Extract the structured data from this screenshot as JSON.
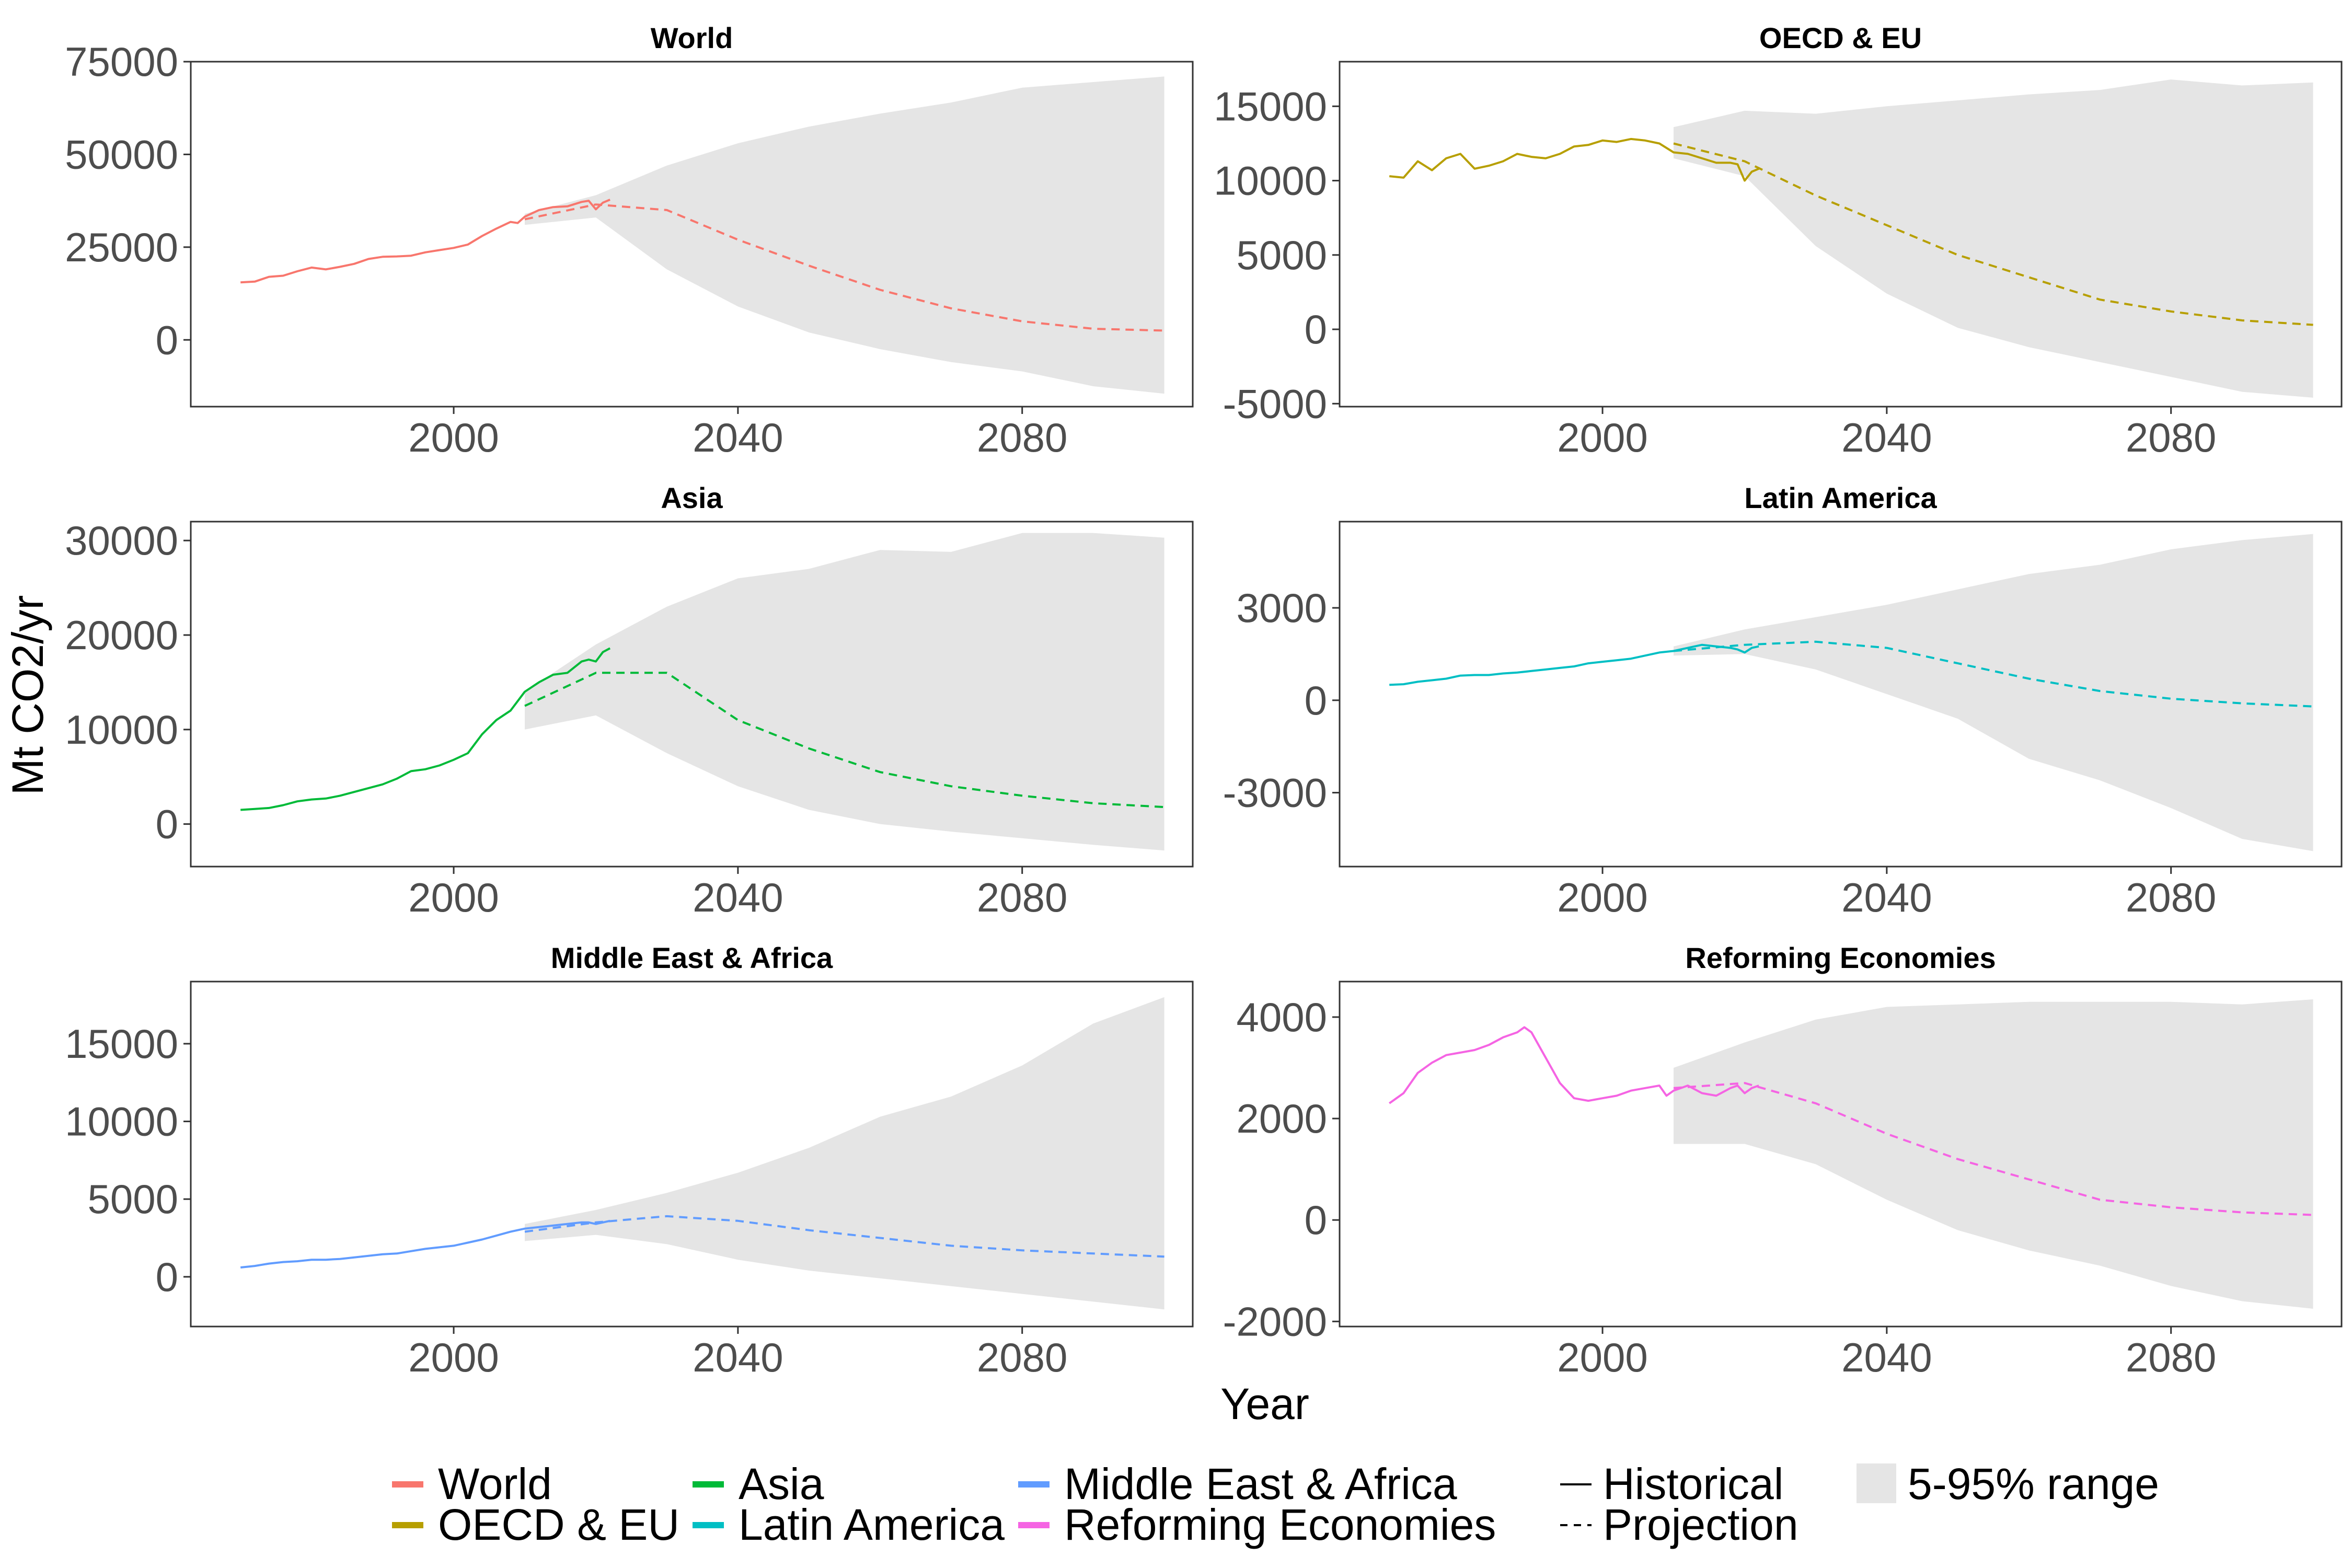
{
  "figure": {
    "xlabel": "Year",
    "ylabel": "Mt CO2/yr"
  },
  "legend": {
    "regions": [
      {
        "name": "World",
        "color": "#F8766D"
      },
      {
        "name": "OECD & EU",
        "color": "#B79F00"
      },
      {
        "name": "Asia",
        "color": "#00BA38"
      },
      {
        "name": "Latin America",
        "color": "#00BFC4"
      },
      {
        "name": "Middle East & Africa",
        "color": "#619CFF"
      },
      {
        "name": "Reforming Economies",
        "color": "#F564E3"
      }
    ],
    "line_types": [
      {
        "name": "Historical",
        "style": "solid"
      },
      {
        "name": "Projection",
        "style": "dashed"
      }
    ],
    "range": {
      "name": "5-95% range",
      "color": "#e5e5e5"
    },
    "placement": "bottom"
  },
  "chart_data": [
    {
      "type": "line",
      "title": "World",
      "color": "#F8766D",
      "xlim": [
        1963,
        2104
      ],
      "ylim": [
        -18000,
        75000
      ],
      "xticks": [
        2000,
        2040,
        2080
      ],
      "yticks": [
        0,
        25000,
        50000,
        75000
      ],
      "series": [
        {
          "name": "Historical",
          "x": [
            1970,
            1972,
            1974,
            1976,
            1978,
            1980,
            1982,
            1984,
            1986,
            1988,
            1990,
            1992,
            1994,
            1996,
            1998,
            2000,
            2002,
            2004,
            2006,
            2008,
            2009,
            2010,
            2012,
            2014,
            2016,
            2018,
            2019,
            2020,
            2021,
            2022
          ],
          "y": [
            15500,
            15700,
            17000,
            17300,
            18500,
            19500,
            19000,
            19700,
            20500,
            21800,
            22400,
            22500,
            22700,
            23600,
            24200,
            24800,
            25700,
            28000,
            30000,
            31800,
            31500,
            33200,
            35000,
            35800,
            36000,
            37200,
            37500,
            35200,
            37000,
            37800
          ]
        },
        {
          "name": "Projection",
          "x": [
            2010,
            2020,
            2030,
            2040,
            2050,
            2060,
            2070,
            2080,
            2090,
            2100
          ],
          "y": [
            32500,
            36500,
            35000,
            27000,
            20000,
            13500,
            8500,
            5000,
            3000,
            2500
          ]
        }
      ],
      "range": {
        "x": [
          2010,
          2020,
          2030,
          2040,
          2050,
          2060,
          2070,
          2080,
          2090,
          2100
        ],
        "low": [
          31000,
          33000,
          19000,
          9000,
          2000,
          -2500,
          -6000,
          -8500,
          -12500,
          -14500
        ],
        "high": [
          34000,
          39000,
          47000,
          53000,
          57500,
          61000,
          64000,
          68000,
          69500,
          71000
        ]
      }
    },
    {
      "type": "line",
      "title": "OECD & EU",
      "color": "#B79F00",
      "xlim": [
        1963,
        2104
      ],
      "ylim": [
        -5200,
        18000
      ],
      "xticks": [
        2000,
        2040,
        2080
      ],
      "yticks": [
        -5000,
        0,
        5000,
        10000,
        15000
      ],
      "series": [
        {
          "name": "Historical",
          "x": [
            1970,
            1972,
            1974,
            1976,
            1978,
            1980,
            1982,
            1984,
            1986,
            1988,
            1990,
            1992,
            1994,
            1996,
            1998,
            2000,
            2002,
            2004,
            2006,
            2008,
            2010,
            2012,
            2014,
            2016,
            2018,
            2019,
            2020,
            2021,
            2022
          ],
          "y": [
            10300,
            10200,
            11300,
            10700,
            11500,
            11800,
            10800,
            11000,
            11300,
            11800,
            11600,
            11500,
            11800,
            12300,
            12400,
            12700,
            12600,
            12800,
            12700,
            12500,
            11900,
            11800,
            11500,
            11200,
            11200,
            11100,
            10000,
            10600,
            10800
          ]
        },
        {
          "name": "Projection",
          "x": [
            2010,
            2020,
            2030,
            2040,
            2050,
            2060,
            2070,
            2080,
            2090,
            2100
          ],
          "y": [
            12500,
            11300,
            9000,
            7000,
            5000,
            3500,
            2000,
            1200,
            600,
            300
          ]
        }
      ],
      "range": {
        "x": [
          2010,
          2020,
          2030,
          2040,
          2050,
          2060,
          2070,
          2080,
          2090,
          2100
        ],
        "low": [
          11500,
          10300,
          5600,
          2400,
          100,
          -1200,
          -2200,
          -3200,
          -4200,
          -4600
        ],
        "high": [
          13600,
          14700,
          14500,
          15000,
          15400,
          15800,
          16100,
          16800,
          16400,
          16600
        ]
      }
    },
    {
      "type": "line",
      "title": "Asia",
      "color": "#00BA38",
      "xlim": [
        1963,
        2104
      ],
      "ylim": [
        -4500,
        32000
      ],
      "xticks": [
        2000,
        2040,
        2080
      ],
      "yticks": [
        0,
        10000,
        20000,
        30000
      ],
      "series": [
        {
          "name": "Historical",
          "x": [
            1970,
            1972,
            1974,
            1976,
            1978,
            1980,
            1982,
            1984,
            1986,
            1988,
            1990,
            1992,
            1994,
            1996,
            1998,
            2000,
            2002,
            2004,
            2006,
            2008,
            2010,
            2012,
            2014,
            2016,
            2018,
            2019,
            2020,
            2021,
            2022
          ],
          "y": [
            1500,
            1600,
            1700,
            2000,
            2400,
            2600,
            2700,
            3000,
            3400,
            3800,
            4200,
            4800,
            5600,
            5800,
            6200,
            6800,
            7500,
            9500,
            11000,
            12000,
            14000,
            15000,
            15800,
            16000,
            17200,
            17400,
            17200,
            18200,
            18600
          ]
        },
        {
          "name": "Projection",
          "x": [
            2010,
            2020,
            2030,
            2040,
            2050,
            2060,
            2070,
            2080,
            2090,
            2100
          ],
          "y": [
            12500,
            16000,
            16000,
            11000,
            8000,
            5500,
            4000,
            3000,
            2200,
            1800
          ]
        }
      ],
      "range": {
        "x": [
          2010,
          2020,
          2030,
          2040,
          2050,
          2060,
          2070,
          2080,
          2090,
          2100
        ],
        "low": [
          10000,
          11500,
          7500,
          4000,
          1500,
          0,
          -800,
          -1500,
          -2200,
          -2800
        ],
        "high": [
          14000,
          19000,
          23000,
          26000,
          27000,
          29000,
          28800,
          30800,
          30800,
          30300
        ]
      }
    },
    {
      "type": "line",
      "title": "Latin America",
      "color": "#00BFC4",
      "xlim": [
        1963,
        2104
      ],
      "ylim": [
        -5400,
        5800
      ],
      "xticks": [
        2000,
        2040,
        2080
      ],
      "yticks": [
        -3000,
        0,
        3000
      ],
      "series": [
        {
          "name": "Historical",
          "x": [
            1970,
            1972,
            1974,
            1976,
            1978,
            1980,
            1982,
            1984,
            1986,
            1988,
            1990,
            1992,
            1994,
            1996,
            1998,
            2000,
            2002,
            2004,
            2006,
            2008,
            2010,
            2012,
            2014,
            2016,
            2018,
            2019,
            2020,
            2021,
            2022
          ],
          "y": [
            500,
            520,
            600,
            650,
            700,
            800,
            820,
            820,
            870,
            900,
            950,
            1000,
            1050,
            1100,
            1200,
            1250,
            1300,
            1350,
            1450,
            1550,
            1600,
            1700,
            1800,
            1750,
            1700,
            1650,
            1550,
            1700,
            1750
          ]
        },
        {
          "name": "Projection",
          "x": [
            2010,
            2020,
            2030,
            2040,
            2050,
            2060,
            2070,
            2080,
            2090,
            2100
          ],
          "y": [
            1600,
            1800,
            1900,
            1700,
            1200,
            700,
            300,
            50,
            -100,
            -200
          ]
        }
      ],
      "range": {
        "x": [
          2010,
          2020,
          2030,
          2040,
          2050,
          2060,
          2070,
          2080,
          2090,
          2100
        ],
        "low": [
          1450,
          1500,
          1000,
          200,
          -600,
          -1900,
          -2600,
          -3500,
          -4500,
          -4900
        ],
        "high": [
          1750,
          2300,
          2700,
          3100,
          3600,
          4100,
          4400,
          4900,
          5200,
          5400
        ]
      }
    },
    {
      "type": "line",
      "title": "Middle East & Africa",
      "color": "#619CFF",
      "xlim": [
        1963,
        2104
      ],
      "ylim": [
        -3200,
        19000
      ],
      "xticks": [
        2000,
        2040,
        2080
      ],
      "yticks": [
        0,
        5000,
        10000,
        15000
      ],
      "series": [
        {
          "name": "Historical",
          "x": [
            1970,
            1972,
            1974,
            1976,
            1978,
            1980,
            1982,
            1984,
            1986,
            1988,
            1990,
            1992,
            1994,
            1996,
            1998,
            2000,
            2002,
            2004,
            2006,
            2008,
            2010,
            2012,
            2014,
            2016,
            2018,
            2019,
            2020,
            2021,
            2022
          ],
          "y": [
            600,
            700,
            850,
            950,
            1000,
            1100,
            1100,
            1150,
            1250,
            1350,
            1450,
            1500,
            1650,
            1800,
            1900,
            2000,
            2200,
            2400,
            2650,
            2900,
            3100,
            3200,
            3300,
            3400,
            3500,
            3500,
            3400,
            3500,
            3600
          ]
        },
        {
          "name": "Projection",
          "x": [
            2010,
            2020,
            2030,
            2040,
            2050,
            2060,
            2070,
            2080,
            2090,
            2100
          ],
          "y": [
            2900,
            3500,
            3900,
            3600,
            3000,
            2500,
            2000,
            1700,
            1500,
            1300
          ]
        }
      ],
      "range": {
        "x": [
          2010,
          2020,
          2030,
          2040,
          2050,
          2060,
          2070,
          2080,
          2090,
          2100
        ],
        "low": [
          2300,
          2700,
          2100,
          1100,
          400,
          -100,
          -600,
          -1100,
          -1600,
          -2100
        ],
        "high": [
          3400,
          4300,
          5400,
          6700,
          8300,
          10300,
          11600,
          13600,
          16300,
          18000
        ]
      }
    },
    {
      "type": "line",
      "title": "Reforming Economies",
      "color": "#F564E3",
      "xlim": [
        1963,
        2104
      ],
      "ylim": [
        -2100,
        4700
      ],
      "xticks": [
        2000,
        2040,
        2080
      ],
      "yticks": [
        -2000,
        0,
        2000,
        4000
      ],
      "series": [
        {
          "name": "Historical",
          "x": [
            1970,
            1972,
            1974,
            1976,
            1978,
            1980,
            1982,
            1984,
            1986,
            1988,
            1989,
            1990,
            1992,
            1994,
            1996,
            1998,
            2000,
            2002,
            2004,
            2006,
            2008,
            2009,
            2010,
            2012,
            2014,
            2016,
            2018,
            2019,
            2020,
            2021,
            2022
          ],
          "y": [
            2300,
            2500,
            2900,
            3100,
            3250,
            3300,
            3350,
            3450,
            3600,
            3700,
            3800,
            3700,
            3200,
            2700,
            2400,
            2350,
            2400,
            2450,
            2550,
            2600,
            2650,
            2450,
            2550,
            2650,
            2500,
            2450,
            2600,
            2650,
            2500,
            2600,
            2650
          ]
        },
        {
          "name": "Projection",
          "x": [
            2010,
            2020,
            2030,
            2040,
            2050,
            2060,
            2070,
            2080,
            2090,
            2100
          ],
          "y": [
            2600,
            2700,
            2300,
            1700,
            1200,
            800,
            400,
            250,
            150,
            100
          ]
        }
      ],
      "range": {
        "x": [
          2010,
          2020,
          2030,
          2040,
          2050,
          2060,
          2070,
          2080,
          2090,
          2100
        ],
        "low": [
          1500,
          1500,
          1100,
          400,
          -200,
          -600,
          -900,
          -1300,
          -1600,
          -1750
        ],
        "high": [
          3000,
          3500,
          3950,
          4200,
          4250,
          4300,
          4300,
          4300,
          4250,
          4350
        ]
      }
    }
  ]
}
